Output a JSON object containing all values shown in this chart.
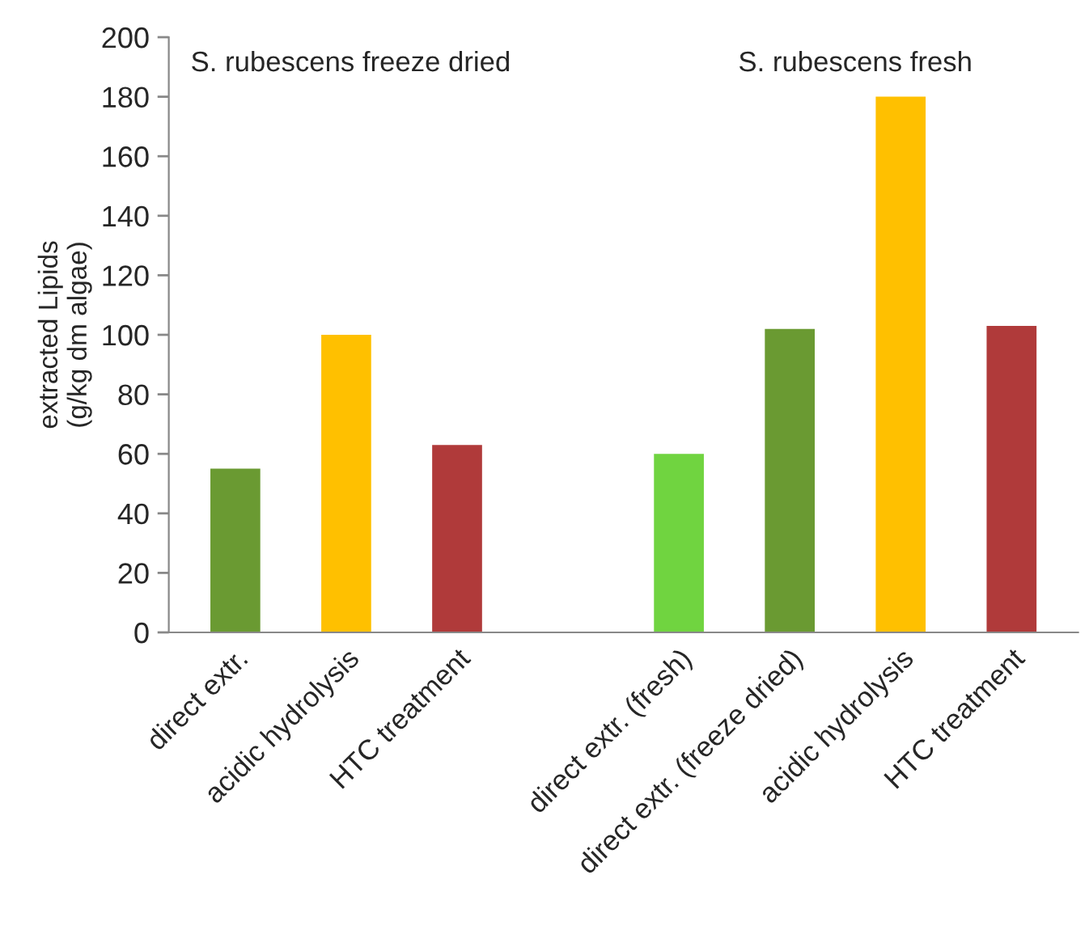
{
  "chart_data": {
    "type": "bar",
    "ylabel": "extracted Lipids\n(g/kg dm algae)",
    "categories": [
      "direct extr.",
      "acidic hydrolysis",
      "HTC treatment",
      null,
      "direct extr. (fresh)",
      "direct extr. (freeze dried)",
      "acidic hydrolysis",
      "HTC treatment"
    ],
    "values": [
      55,
      100,
      63,
      null,
      60,
      102,
      180,
      103
    ],
    "colors": [
      "#6a9a32",
      "#ffc000",
      "#b03a3a",
      "#ffffff",
      "#70d440",
      "#6a9a32",
      "#ffc000",
      "#b03a3a"
    ],
    "ylim": [
      0,
      200
    ],
    "yticks": [
      0,
      20,
      40,
      60,
      80,
      100,
      120,
      140,
      160,
      180,
      200
    ],
    "annotations": [
      "S. rubescens freeze dried",
      "S. rubescens fresh"
    ],
    "grid": false,
    "legend": false
  }
}
